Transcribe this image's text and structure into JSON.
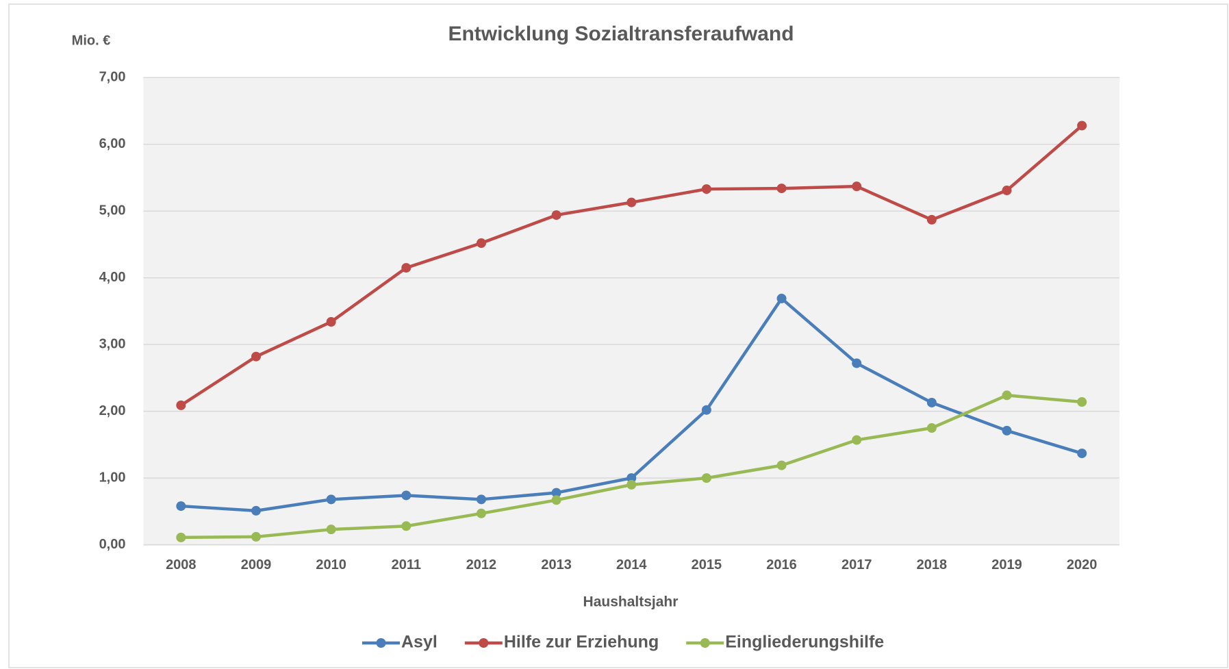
{
  "chart_data": {
    "type": "line",
    "title": "Entwicklung Sozialtransferaufwand",
    "y_axis_label": "Mio. €",
    "x_axis_label": "Haushaltsjahr",
    "categories": [
      "2008",
      "2009",
      "2010",
      "2011",
      "2012",
      "2013",
      "2014",
      "2015",
      "2016",
      "2017",
      "2018",
      "2019",
      "2020"
    ],
    "series": [
      {
        "name": "Asyl",
        "color": "#4a7ebb",
        "values": [
          0.58,
          0.51,
          0.68,
          0.74,
          0.68,
          0.78,
          1.0,
          2.02,
          3.69,
          2.72,
          2.13,
          1.71,
          1.37
        ]
      },
      {
        "name": "Hilfe zur Erziehung",
        "color": "#be4b48",
        "values": [
          2.09,
          2.82,
          3.34,
          4.15,
          4.52,
          4.94,
          5.13,
          5.33,
          5.34,
          5.37,
          4.87,
          5.31,
          6.28
        ]
      },
      {
        "name": "Eingliederungshilfe",
        "color": "#98b954",
        "values": [
          0.11,
          0.12,
          0.23,
          0.28,
          0.47,
          0.67,
          0.9,
          1.0,
          1.19,
          1.57,
          1.75,
          2.24,
          2.14
        ]
      }
    ],
    "ylim": [
      0,
      7
    ],
    "yticks": [
      {
        "value": 0,
        "label": "0,00"
      },
      {
        "value": 1,
        "label": "1,00"
      },
      {
        "value": 2,
        "label": "2,00"
      },
      {
        "value": 3,
        "label": "3,00"
      },
      {
        "value": 4,
        "label": "4,00"
      },
      {
        "value": 5,
        "label": "5,00"
      },
      {
        "value": 6,
        "label": "6,00"
      },
      {
        "value": 7,
        "label": "7,00"
      }
    ],
    "grid": true,
    "legend": "bottom"
  }
}
